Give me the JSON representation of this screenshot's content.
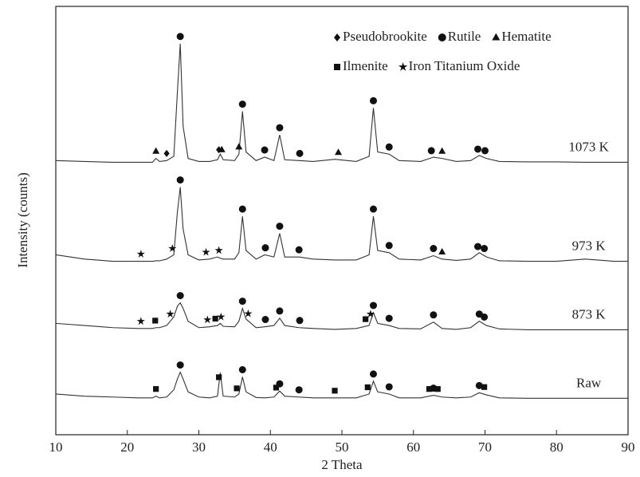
{
  "chart_data": {
    "type": "line",
    "x_label": "2 Theta",
    "y_label": "Intensity (counts)",
    "xlim": [
      10,
      90
    ],
    "xticks": [
      10,
      20,
      30,
      40,
      50,
      60,
      70,
      80,
      90
    ],
    "ylim": [
      0,
      100
    ],
    "legend": "upper right",
    "phases": [
      {
        "name": "Pseudobrookite",
        "marker": "diamond"
      },
      {
        "name": "Rutile",
        "marker": "circle"
      },
      {
        "name": "Hematite",
        "marker": "triangle"
      },
      {
        "name": "Ilmenite",
        "marker": "square"
      },
      {
        "name": "Iron Titanium Oxide",
        "marker": "star"
      }
    ],
    "x": [
      10,
      14,
      18,
      21.5,
      23.5,
      24,
      24.5,
      25.5,
      26.5,
      27,
      27.4,
      27.8,
      28.5,
      30,
      31.5,
      32.6,
      33,
      33.4,
      35,
      35.6,
      36.1,
      36.6,
      38,
      39.2,
      40.5,
      41.3,
      42,
      44,
      46,
      49,
      52,
      53.8,
      54.4,
      55,
      56.6,
      58,
      61,
      62.8,
      64,
      66,
      68,
      69.2,
      70.2,
      72,
      76,
      80,
      84,
      88,
      90
    ],
    "series": [
      {
        "name": "Raw",
        "color": "#333333",
        "values": [
          9.5,
          9,
          8.8,
          8.6,
          8.6,
          9,
          8.6,
          8.8,
          10.5,
          13,
          14.6,
          13,
          10,
          8.8,
          8.6,
          9,
          14.5,
          9,
          8.8,
          9.5,
          13.5,
          10,
          8.7,
          8.6,
          8.8,
          10.2,
          9,
          8.8,
          8.6,
          8.6,
          8.6,
          9.5,
          12.5,
          10,
          9.5,
          8.6,
          8.6,
          9.2,
          8.8,
          8.6,
          8.8,
          9.8,
          9.3,
          8.6,
          8.5,
          8.5,
          8.5,
          8.5,
          8.5
        ],
        "phase_peaks": [
          [],
          [
            27.4,
            36.1,
            41.3,
            44,
            54.4,
            56.6,
            62.8,
            69.2
          ],
          [],
          [
            24,
            32.8,
            35.3,
            40.8,
            49,
            53.6,
            62.2,
            63.4,
            69.9
          ],
          []
        ]
      },
      {
        "name": "873 K",
        "color": "#333333",
        "values": [
          26,
          25.5,
          25,
          24.8,
          24.8,
          25,
          25,
          25.5,
          27.5,
          30,
          30.8,
          29.5,
          26.5,
          25,
          25.2,
          25.5,
          26,
          25.3,
          25.2,
          26.5,
          29.5,
          27,
          25,
          25.2,
          25.5,
          27.2,
          25.5,
          25,
          24.8,
          24.6,
          24.8,
          25.5,
          28.5,
          26,
          25.5,
          24.8,
          24.7,
          26.3,
          24.8,
          24.6,
          25,
          26.5,
          25.5,
          24.7,
          24.5,
          24.5,
          24.5,
          24.5,
          24.5
        ],
        "phase_peaks": [
          [],
          [
            27.4,
            36.1,
            39.3,
            41.3,
            44.1,
            54.4,
            56.6,
            62.8,
            69.2,
            69.9
          ],
          [],
          [
            23.9,
            32.3,
            53.3
          ],
          [
            21.9,
            26,
            31.2,
            33.1,
            36.9,
            54
          ]
        ]
      },
      {
        "name": "973 K",
        "color": "#333333",
        "values": [
          42,
          41,
          40.5,
          40.5,
          40.5,
          40.6,
          40.6,
          41,
          42,
          52,
          57.8,
          48,
          42,
          40.8,
          41,
          41.5,
          41.2,
          41,
          41,
          42.5,
          51,
          43,
          41,
          42,
          41.5,
          47,
          41.5,
          41.5,
          41,
          40.8,
          40.8,
          42,
          51,
          43,
          42.5,
          41,
          40.8,
          41.8,
          41,
          40.7,
          41,
          42.5,
          41.5,
          40.6,
          40.5,
          40.5,
          41,
          40.5,
          40.5
        ],
        "phase_peaks": [
          [],
          [
            27.4,
            36.1,
            39.3,
            41.3,
            44,
            54.4,
            56.6,
            62.8,
            69,
            69.9
          ],
          [
            64
          ],
          [],
          [
            21.9,
            26.3,
            31,
            32.8
          ]
        ]
      },
      {
        "name": "1073 K",
        "color": "#333333",
        "values": [
          64,
          63.8,
          63.6,
          63.6,
          63.6,
          64.5,
          63.8,
          64,
          65,
          80,
          91.3,
          72,
          64.5,
          63.8,
          63.8,
          64.2,
          65.5,
          64.2,
          64,
          65.5,
          75.5,
          66,
          64,
          64.8,
          64,
          70,
          64.2,
          64,
          63.8,
          64.3,
          63.8,
          65,
          76.3,
          66,
          65.5,
          64,
          63.8,
          64.8,
          64.5,
          63.8,
          64,
          65.2,
          64.5,
          63.8,
          63.7,
          63.7,
          63.6,
          63.6,
          63.6
        ],
        "phase_peaks": [
          [
            25.5,
            32.8
          ],
          [
            27.4,
            36.1,
            39.2,
            41.3,
            44.1,
            54.4,
            56.6,
            62.5,
            69,
            70
          ],
          [
            24,
            33.2,
            35.6,
            49.5,
            64
          ],
          [],
          []
        ]
      }
    ]
  }
}
